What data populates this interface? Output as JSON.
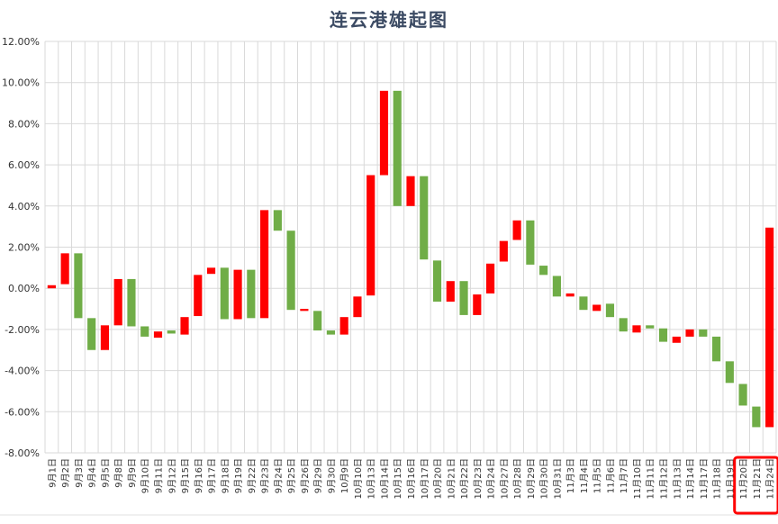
{
  "chart_data": {
    "type": "bar",
    "subtype": "floating-bar (waterfall-style)",
    "title": "连云港雄起图",
    "xlabel": "",
    "ylabel": "",
    "ylim": [
      -8,
      12
    ],
    "y_tick_format": "percent-2dp",
    "y_ticks": [
      "12.00%",
      "10.00%",
      "8.00%",
      "6.00%",
      "4.00%",
      "2.00%",
      "0.00%",
      "-2.00%",
      "-4.00%",
      "-6.00%",
      "-8.00%"
    ],
    "grid": true,
    "legend": "none",
    "colors": {
      "up": "#ff0000",
      "down": "#70ad47",
      "grid": "#d9d9d9",
      "highlight": "#ff0000"
    },
    "highlight_range": [
      "11月20日",
      "11月24日"
    ],
    "categories": [
      "9月1日",
      "9月2日",
      "9月3日",
      "9月4日",
      "9月5日",
      "9月8日",
      "9月9日",
      "9月10日",
      "9月11日",
      "9月12日",
      "9月15日",
      "9月16日",
      "9月17日",
      "9月18日",
      "9月19日",
      "9月22日",
      "9月23日",
      "9月24日",
      "9月25日",
      "9月26日",
      "9月29日",
      "9月30日",
      "10月9日",
      "10月10日",
      "10月13日",
      "10月14日",
      "10月15日",
      "10月16日",
      "10月17日",
      "10月20日",
      "10月21日",
      "10月22日",
      "10月23日",
      "10月24日",
      "10月27日",
      "10月28日",
      "10月29日",
      "10月30日",
      "10月31日",
      "11月3日",
      "11月4日",
      "11月5日",
      "11月6日",
      "11月7日",
      "11月10日",
      "11月11日",
      "11月12日",
      "11月13日",
      "11月14日",
      "11月17日",
      "11月18日",
      "11月19日",
      "11月20日",
      "11月21日",
      "11月24日"
    ],
    "bars": [
      {
        "low": 0.0,
        "high": 0.15,
        "dir": "up"
      },
      {
        "low": 0.2,
        "high": 1.7,
        "dir": "up"
      },
      {
        "low": -1.45,
        "high": 1.7,
        "dir": "down"
      },
      {
        "low": -3.0,
        "high": -1.45,
        "dir": "down"
      },
      {
        "low": -3.0,
        "high": -1.8,
        "dir": "up"
      },
      {
        "low": -1.8,
        "high": 0.45,
        "dir": "up"
      },
      {
        "low": -1.85,
        "high": 0.45,
        "dir": "down"
      },
      {
        "low": -2.35,
        "high": -1.85,
        "dir": "down"
      },
      {
        "low": -2.4,
        "high": -2.1,
        "dir": "up"
      },
      {
        "low": -2.2,
        "high": -2.05,
        "dir": "down"
      },
      {
        "low": -2.25,
        "high": -1.4,
        "dir": "up"
      },
      {
        "low": -1.35,
        "high": 0.65,
        "dir": "up"
      },
      {
        "low": 0.7,
        "high": 1.0,
        "dir": "up"
      },
      {
        "low": -1.5,
        "high": 1.0,
        "dir": "down"
      },
      {
        "low": -1.5,
        "high": 0.9,
        "dir": "up"
      },
      {
        "low": -1.45,
        "high": 0.9,
        "dir": "down"
      },
      {
        "low": -1.45,
        "high": 3.8,
        "dir": "up"
      },
      {
        "low": 2.8,
        "high": 3.8,
        "dir": "down"
      },
      {
        "low": -1.05,
        "high": 2.8,
        "dir": "down"
      },
      {
        "low": -1.1,
        "high": -1.0,
        "dir": "up"
      },
      {
        "low": -2.05,
        "high": -1.1,
        "dir": "down"
      },
      {
        "low": -2.25,
        "high": -2.05,
        "dir": "down"
      },
      {
        "low": -2.25,
        "high": -1.4,
        "dir": "up"
      },
      {
        "low": -1.4,
        "high": -0.4,
        "dir": "up"
      },
      {
        "low": -0.35,
        "high": 5.5,
        "dir": "up"
      },
      {
        "low": 5.5,
        "high": 9.6,
        "dir": "up"
      },
      {
        "low": 4.0,
        "high": 9.6,
        "dir": "down"
      },
      {
        "low": 4.0,
        "high": 5.45,
        "dir": "up"
      },
      {
        "low": 1.4,
        "high": 5.45,
        "dir": "down"
      },
      {
        "low": -0.65,
        "high": 1.35,
        "dir": "down"
      },
      {
        "low": -0.65,
        "high": 0.35,
        "dir": "up"
      },
      {
        "low": -1.3,
        "high": 0.35,
        "dir": "down"
      },
      {
        "low": -1.3,
        "high": -0.3,
        "dir": "up"
      },
      {
        "low": -0.25,
        "high": 1.2,
        "dir": "up"
      },
      {
        "low": 1.3,
        "high": 2.3,
        "dir": "up"
      },
      {
        "low": 2.35,
        "high": 3.3,
        "dir": "up"
      },
      {
        "low": 1.15,
        "high": 3.3,
        "dir": "down"
      },
      {
        "low": 0.65,
        "high": 1.1,
        "dir": "down"
      },
      {
        "low": -0.4,
        "high": 0.6,
        "dir": "down"
      },
      {
        "low": -0.4,
        "high": -0.25,
        "dir": "up"
      },
      {
        "low": -1.05,
        "high": -0.4,
        "dir": "down"
      },
      {
        "low": -1.1,
        "high": -0.8,
        "dir": "up"
      },
      {
        "low": -1.4,
        "high": -0.75,
        "dir": "down"
      },
      {
        "low": -2.1,
        "high": -1.45,
        "dir": "down"
      },
      {
        "low": -2.15,
        "high": -1.8,
        "dir": "up"
      },
      {
        "low": -1.95,
        "high": -1.8,
        "dir": "down"
      },
      {
        "low": -2.6,
        "high": -1.95,
        "dir": "down"
      },
      {
        "low": -2.65,
        "high": -2.35,
        "dir": "up"
      },
      {
        "low": -2.35,
        "high": -2.0,
        "dir": "up"
      },
      {
        "low": -2.35,
        "high": -2.0,
        "dir": "down"
      },
      {
        "low": -3.55,
        "high": -2.35,
        "dir": "down"
      },
      {
        "low": -4.6,
        "high": -3.55,
        "dir": "down"
      },
      {
        "low": -5.7,
        "high": -4.65,
        "dir": "down"
      },
      {
        "low": -6.75,
        "high": -5.75,
        "dir": "down"
      },
      {
        "low": -6.75,
        "high": 2.95,
        "dir": "up"
      }
    ]
  }
}
